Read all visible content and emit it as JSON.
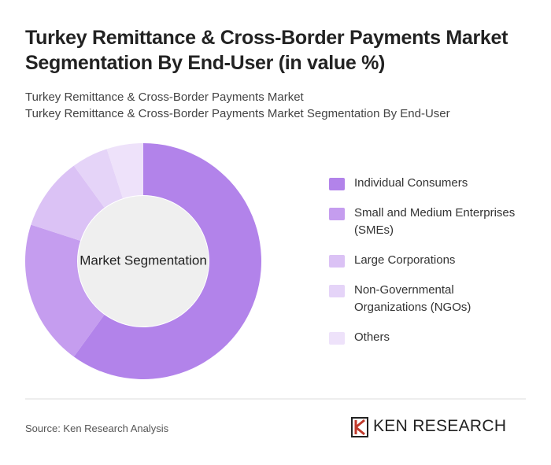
{
  "chart_data": {
    "type": "donut",
    "title": "Turkey Remittance & Cross-Border Payments Market Segmentation By End-User (in value %)",
    "subtitle": [
      "Turkey Remittance & Cross-Border Payments Market",
      "Turkey Remittance & Cross-Border Payments Market Segmentation By End-User"
    ],
    "center_label": "Market Segmentation",
    "categories": [
      "Individual Consumers",
      "Small and Medium Enterprises (SMEs)",
      "Large Corporations",
      "Non-Governmental Organizations (NGOs)",
      "Others"
    ],
    "values": [
      60,
      20,
      10,
      5,
      5
    ],
    "colors": [
      "#b283ea",
      "#c59def",
      "#dbc2f5",
      "#e5d4f8",
      "#eee2fa"
    ]
  },
  "source": "Source: Ken Research Analysis",
  "logo": "KEN RESEARCH"
}
